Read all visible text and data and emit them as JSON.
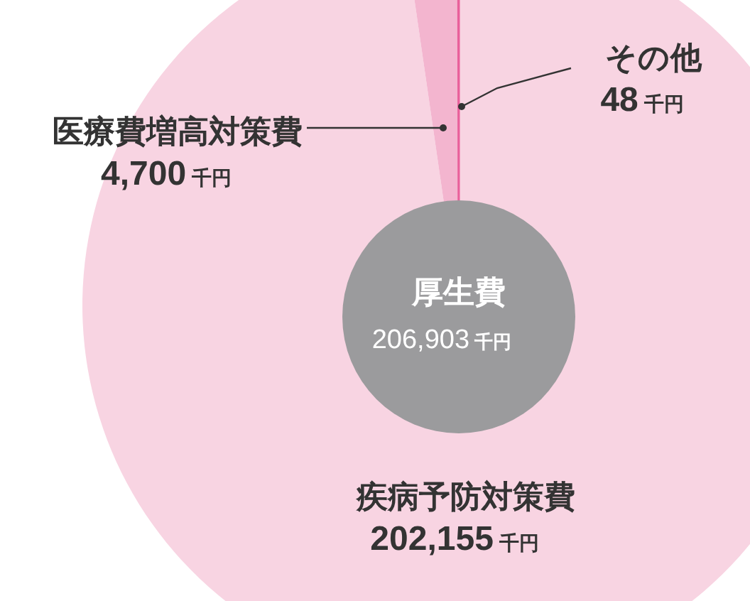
{
  "chart_data": {
    "type": "pie",
    "title": "厚生費",
    "subtitle": "206,903 千円",
    "categories": [
      "疾病予防対策費",
      "医療費増高対策費",
      "その他"
    ],
    "values": [
      202155,
      4700,
      48
    ],
    "value_labels": [
      "202,155 千円",
      "4,700 千円",
      "48 千円"
    ],
    "colors": [
      "#f8d4e2",
      "#f3b5cf",
      "#e9609b"
    ]
  }
}
